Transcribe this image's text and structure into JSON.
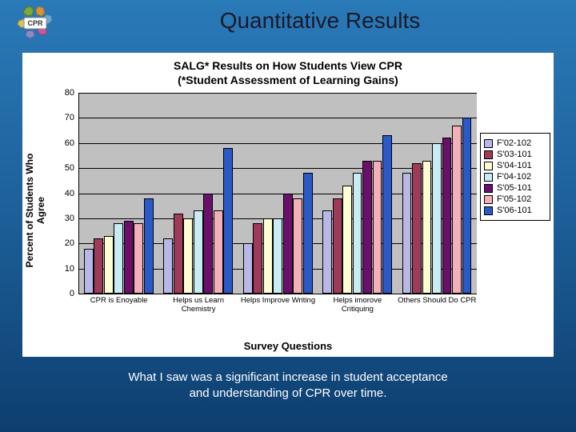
{
  "slide": {
    "title": "Quantitative Results",
    "caption_line1": "What I saw was a significant increase in student acceptance",
    "caption_line2": "and understanding of CPR over time.",
    "logo_text": "CPR"
  },
  "chart": {
    "type": "bar",
    "title_line1": "SALG* Results on How Students View CPR",
    "title_line2": "(*Student Assessment of Learning Gains)",
    "ylabel": "Percent of Students Who\nAgree",
    "xlabel": "Survey Questions",
    "ylim": [
      0,
      80
    ],
    "ytick_step": 10,
    "yticks": [
      0,
      10,
      20,
      30,
      40,
      50,
      60,
      70,
      80
    ],
    "background_color": "#ffffff",
    "plot_bg_color": "#c0c0c0",
    "grid_color": "#000000",
    "title_fontsize": 14,
    "label_fontsize": 12,
    "tick_fontsize": 11,
    "bar_border": "#000000",
    "categories": [
      "CPR is Enoyable",
      "Helps us Learn Chemistry",
      "Helps Improve Writing",
      "Helps imorove Critiquing",
      "Others Should Do CPR"
    ],
    "series": [
      {
        "name": "F'02-102",
        "color": "#b8b8e8"
      },
      {
        "name": "S'03-101",
        "color": "#9e3a5a"
      },
      {
        "name": "S'04-101",
        "color": "#fefed2"
      },
      {
        "name": "F'04-102",
        "color": "#c8ecf4"
      },
      {
        "name": "S'05-101",
        "color": "#6a106a"
      },
      {
        "name": "F'05-102",
        "color": "#f4b0b8"
      },
      {
        "name": "S'06-101",
        "color": "#2a5aca"
      }
    ],
    "values": [
      [
        18,
        22,
        23,
        28,
        29,
        28,
        38
      ],
      [
        22,
        32,
        30,
        33,
        40,
        33,
        58
      ],
      [
        20,
        28,
        30,
        30,
        40,
        38,
        48
      ],
      [
        33,
        38,
        43,
        48,
        53,
        53,
        63
      ],
      [
        48,
        52,
        53,
        60,
        62,
        67,
        70
      ]
    ]
  }
}
